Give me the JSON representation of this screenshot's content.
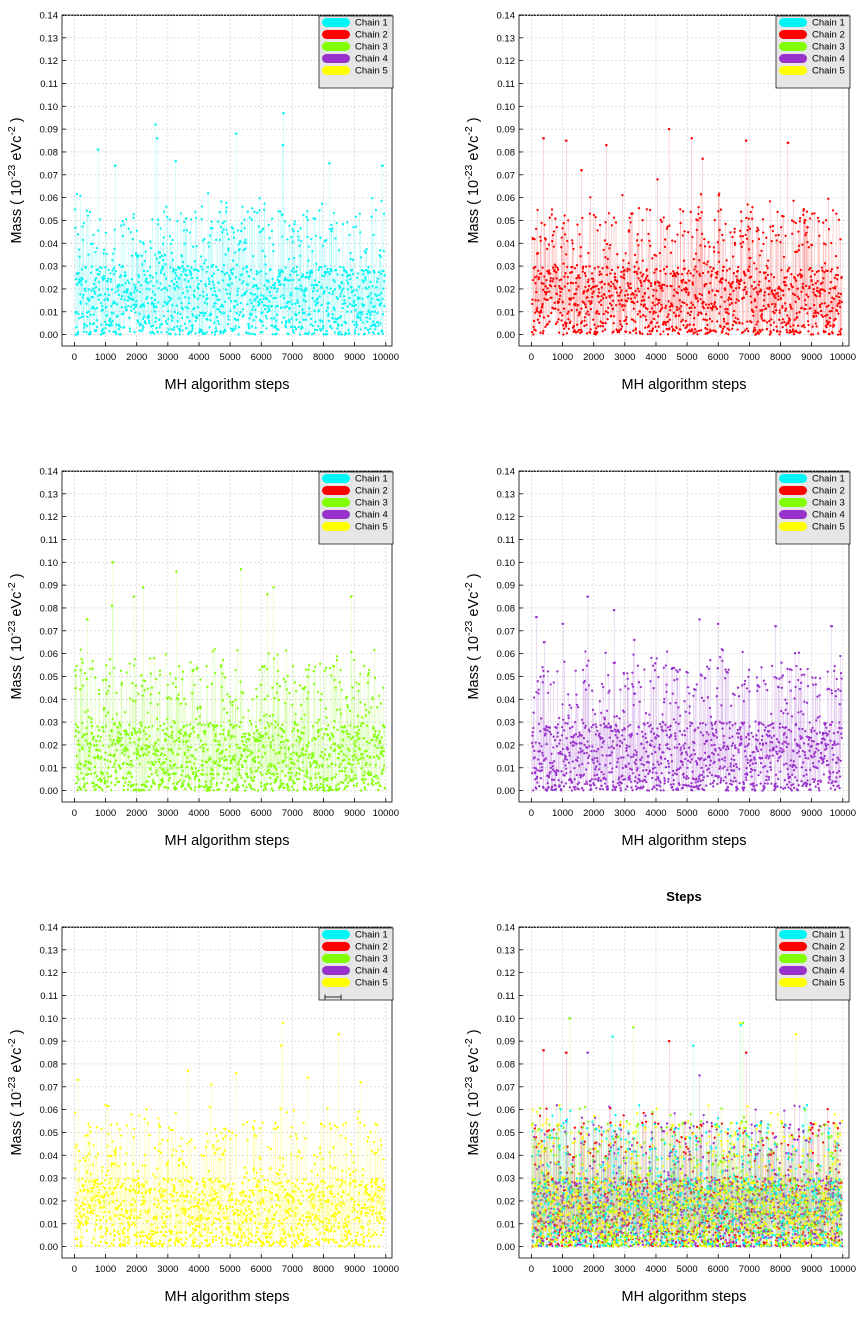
{
  "figure": {
    "steps_title": "Steps",
    "legend_labels": [
      "Chain 1",
      "Chain 2",
      "Chain 3",
      "Chain 4",
      "Chain 5"
    ],
    "colors": {
      "chain1": "#00f5f5",
      "chain2": "#ff0000",
      "chain3": "#80ff00",
      "chain4": "#9932cc",
      "chain5": "#ffff00",
      "legend_bg": "#e6e6e6",
      "grid": "#c8c8c8"
    }
  },
  "chart_data": [
    {
      "type": "scatter",
      "title": "",
      "xlabel": "MH algorithm steps",
      "ylabel": "Mass ( 10^-23 eVc^-2 )",
      "xlim": [
        -400,
        10200
      ],
      "ylim": [
        -0.005,
        0.14
      ],
      "xticks": [
        0,
        1000,
        2000,
        3000,
        4000,
        5000,
        6000,
        7000,
        8000,
        9000,
        10000
      ],
      "yticks": [
        0.0,
        0.01,
        0.02,
        0.03,
        0.04,
        0.05,
        0.06,
        0.07,
        0.08,
        0.09,
        0.1,
        0.11,
        0.12,
        0.13,
        0.14
      ],
      "legend": [
        "Chain 1",
        "Chain 2",
        "Chain 3",
        "Chain 4",
        "Chain 5"
      ],
      "legend_position": "top-right",
      "series": [
        {
          "name": "Chain 1",
          "color": "#00f5f5",
          "n_points": 1400,
          "range": [
            0.0,
            0.097
          ],
          "typical_max": 0.055,
          "outliers": [
            [
              2600,
              0.092
            ],
            [
              6720,
              0.097
            ],
            [
              5200,
              0.088
            ],
            [
              2650,
              0.086
            ],
            [
              750,
              0.081
            ],
            [
              6700,
              0.083
            ],
            [
              1300,
              0.074
            ],
            [
              3250,
              0.076
            ],
            [
              8200,
              0.075
            ],
            [
              9900,
              0.074
            ]
          ]
        }
      ]
    },
    {
      "type": "scatter",
      "title": "",
      "xlabel": "MH algorithm steps",
      "ylabel": "Mass ( 10^-23 eVc^-2 )",
      "xlim": [
        -400,
        10200
      ],
      "ylim": [
        -0.005,
        0.14
      ],
      "xticks": [
        0,
        1000,
        2000,
        3000,
        4000,
        5000,
        6000,
        7000,
        8000,
        9000,
        10000
      ],
      "yticks": [
        0.0,
        0.01,
        0.02,
        0.03,
        0.04,
        0.05,
        0.06,
        0.07,
        0.08,
        0.09,
        0.1,
        0.11,
        0.12,
        0.13,
        0.14
      ],
      "legend": [
        "Chain 1",
        "Chain 2",
        "Chain 3",
        "Chain 4",
        "Chain 5"
      ],
      "legend_position": "top-right",
      "series": [
        {
          "name": "Chain 2",
          "color": "#ff0000",
          "n_points": 1400,
          "range": [
            0.0,
            0.09
          ],
          "typical_max": 0.055,
          "outliers": [
            [
              4420,
              0.09
            ],
            [
              5150,
              0.086
            ],
            [
              380,
              0.086
            ],
            [
              1110,
              0.085
            ],
            [
              6900,
              0.085
            ],
            [
              8250,
              0.084
            ],
            [
              2400,
              0.083
            ],
            [
              5500,
              0.077
            ],
            [
              1600,
              0.072
            ],
            [
              4050,
              0.068
            ]
          ]
        }
      ]
    },
    {
      "type": "scatter",
      "title": "",
      "xlabel": "MH algorithm steps",
      "ylabel": "Mass ( 10^-23 eVc^-2 )",
      "xlim": [
        -400,
        10200
      ],
      "ylim": [
        -0.005,
        0.14
      ],
      "xticks": [
        0,
        1000,
        2000,
        3000,
        4000,
        5000,
        6000,
        7000,
        8000,
        9000,
        10000
      ],
      "yticks": [
        0.0,
        0.01,
        0.02,
        0.03,
        0.04,
        0.05,
        0.06,
        0.07,
        0.08,
        0.09,
        0.1,
        0.11,
        0.12,
        0.13,
        0.14
      ],
      "legend": [
        "Chain 1",
        "Chain 2",
        "Chain 3",
        "Chain 4",
        "Chain 5"
      ],
      "legend_position": "top-right",
      "series": [
        {
          "name": "Chain 3",
          "color": "#80ff00",
          "n_points": 1400,
          "range": [
            0.0,
            0.1
          ],
          "typical_max": 0.055,
          "outliers": [
            [
              1220,
              0.1
            ],
            [
              5350,
              0.097
            ],
            [
              3270,
              0.096
            ],
            [
              2200,
              0.089
            ],
            [
              6400,
              0.089
            ],
            [
              8900,
              0.085
            ],
            [
              1900,
              0.085
            ],
            [
              6200,
              0.086
            ],
            [
              1200,
              0.081
            ],
            [
              400,
              0.075
            ]
          ]
        }
      ]
    },
    {
      "type": "scatter",
      "title": "",
      "xlabel": "MH algorithm steps",
      "ylabel": "Mass ( 10^-23 eVc^-2 )",
      "xlim": [
        -400,
        10200
      ],
      "ylim": [
        -0.005,
        0.14
      ],
      "xticks": [
        0,
        1000,
        2000,
        3000,
        4000,
        5000,
        6000,
        7000,
        8000,
        9000,
        10000
      ],
      "yticks": [
        0.0,
        0.01,
        0.02,
        0.03,
        0.04,
        0.05,
        0.06,
        0.07,
        0.08,
        0.09,
        0.1,
        0.11,
        0.12,
        0.13,
        0.14
      ],
      "legend": [
        "Chain 1",
        "Chain 2",
        "Chain 3",
        "Chain 4",
        "Chain 5"
      ],
      "legend_position": "top-right",
      "series": [
        {
          "name": "Chain 4",
          "color": "#9932cc",
          "n_points": 1400,
          "range": [
            0.0,
            0.085
          ],
          "typical_max": 0.055,
          "outliers": [
            [
              1800,
              0.085
            ],
            [
              2650,
              0.079
            ],
            [
              150,
              0.076
            ],
            [
              5400,
              0.075
            ],
            [
              1000,
              0.073
            ],
            [
              6000,
              0.073
            ],
            [
              7850,
              0.072
            ],
            [
              9650,
              0.072
            ],
            [
              400,
              0.065
            ],
            [
              3300,
              0.066
            ]
          ]
        }
      ]
    },
    {
      "type": "scatter",
      "title": "",
      "xlabel": "MH algorithm steps",
      "ylabel": "Mass ( 10^-23 eVc^-2 )",
      "xlim": [
        -400,
        10200
      ],
      "ylim": [
        -0.005,
        0.14
      ],
      "xticks": [
        0,
        1000,
        2000,
        3000,
        4000,
        5000,
        6000,
        7000,
        8000,
        9000,
        10000
      ],
      "yticks": [
        0.0,
        0.01,
        0.02,
        0.03,
        0.04,
        0.05,
        0.06,
        0.07,
        0.08,
        0.09,
        0.1,
        0.11,
        0.12,
        0.13,
        0.14
      ],
      "legend": [
        "Chain 1",
        "Chain 2",
        "Chain 3",
        "Chain 4",
        "Chain 5"
      ],
      "legend_position": "top-right",
      "series": [
        {
          "name": "Chain 5",
          "color": "#ffff00",
          "n_points": 1400,
          "range": [
            0.0,
            0.098
          ],
          "typical_max": 0.055,
          "outliers": [
            [
              6700,
              0.098
            ],
            [
              8500,
              0.093
            ],
            [
              6650,
              0.088
            ],
            [
              3650,
              0.077
            ],
            [
              5200,
              0.076
            ],
            [
              7500,
              0.074
            ],
            [
              100,
              0.073
            ],
            [
              9200,
              0.072
            ],
            [
              4400,
              0.071
            ],
            [
              1000,
              0.062
            ]
          ]
        }
      ]
    },
    {
      "type": "scatter",
      "title": "Steps",
      "xlabel": "MH algorithm steps",
      "ylabel": "Mass ( 10^-23 eVc^-2 )",
      "xlim": [
        -400,
        10200
      ],
      "ylim": [
        -0.005,
        0.14
      ],
      "xticks": [
        0,
        1000,
        2000,
        3000,
        4000,
        5000,
        6000,
        7000,
        8000,
        9000,
        10000
      ],
      "yticks": [
        0.0,
        0.01,
        0.02,
        0.03,
        0.04,
        0.05,
        0.06,
        0.07,
        0.08,
        0.09,
        0.1,
        0.11,
        0.12,
        0.13,
        0.14
      ],
      "legend": [
        "Chain 1",
        "Chain 2",
        "Chain 3",
        "Chain 4",
        "Chain 5"
      ],
      "legend_position": "top-right",
      "series": [
        {
          "name": "Chain 2",
          "color": "#ff0000",
          "n_points": 900,
          "range": [
            0.0,
            0.09
          ],
          "typical_max": 0.055,
          "outliers": [
            [
              4420,
              0.09
            ],
            [
              380,
              0.086
            ],
            [
              1110,
              0.085
            ],
            [
              6900,
              0.085
            ]
          ]
        },
        {
          "name": "Chain 3",
          "color": "#80ff00",
          "n_points": 900,
          "range": [
            0.0,
            0.1
          ],
          "typical_max": 0.055,
          "outliers": [
            [
              1220,
              0.1
            ],
            [
              6800,
              0.098
            ],
            [
              3270,
              0.096
            ]
          ]
        },
        {
          "name": "Chain 4",
          "color": "#9932cc",
          "n_points": 900,
          "range": [
            0.0,
            0.085
          ],
          "typical_max": 0.055,
          "outliers": [
            [
              1800,
              0.085
            ],
            [
              5400,
              0.075
            ]
          ]
        },
        {
          "name": "Chain 1",
          "color": "#00f5f5",
          "n_points": 900,
          "range": [
            0.0,
            0.097
          ],
          "typical_max": 0.055,
          "outliers": [
            [
              2600,
              0.092
            ],
            [
              6720,
              0.097
            ],
            [
              5200,
              0.088
            ]
          ]
        },
        {
          "name": "Chain 5",
          "color": "#ffff00",
          "n_points": 900,
          "range": [
            0.0,
            0.098
          ],
          "typical_max": 0.055,
          "outliers": [
            [
              6700,
              0.098
            ],
            [
              8500,
              0.093
            ]
          ]
        }
      ]
    }
  ]
}
